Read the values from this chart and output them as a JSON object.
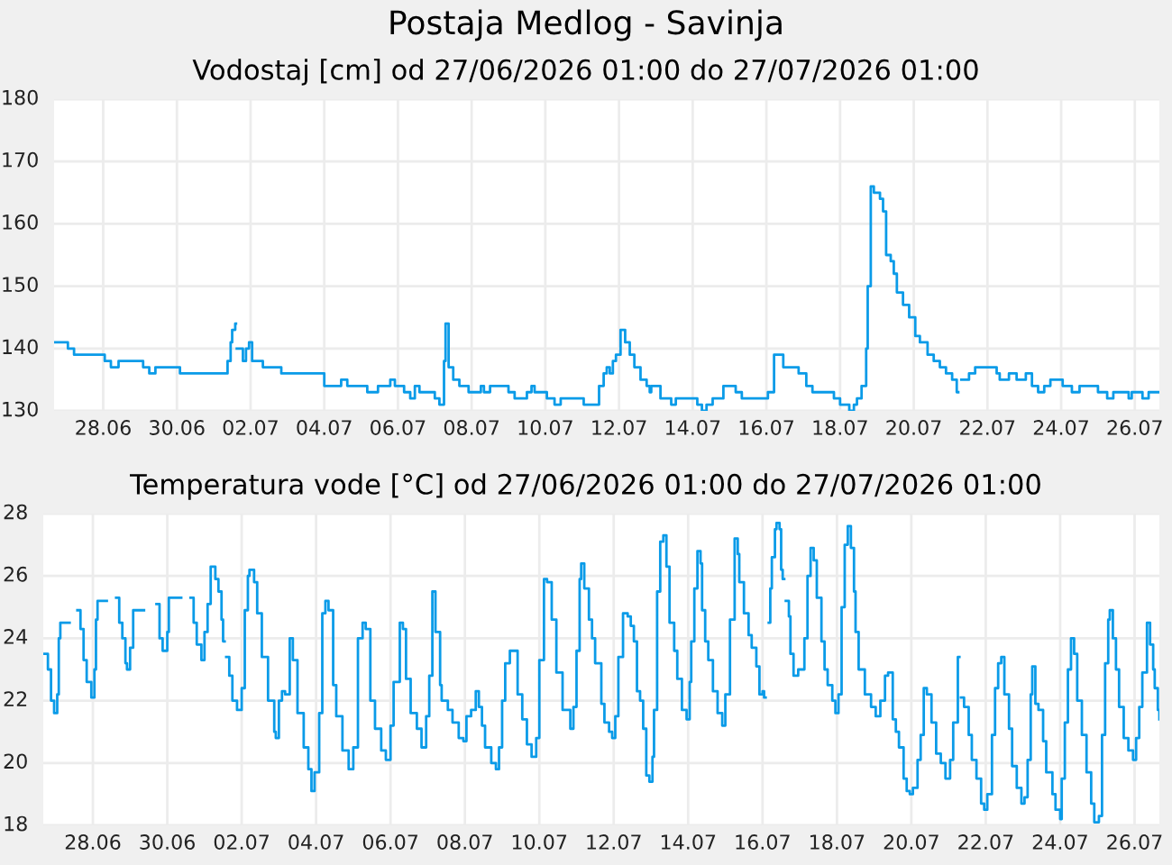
{
  "chart_data": [
    {
      "type": "step",
      "title": "Postaja Medlog - Savinja",
      "subtitle": "Vodostaj [cm] od 27/06/2026 01:00 do 27/07/2026 01:00",
      "series": [
        {
          "color": "#0a9be8",
          "x": [
            "2026-06-27T01:00",
            "2026-06-27T10:00",
            "2026-06-27T14:00",
            "2026-06-28T10:00",
            "2026-06-28T14:00",
            "2026-06-28T19:00",
            "2026-06-29T11:00",
            "2026-06-29T15:00",
            "2026-06-29T19:00",
            "2026-06-30T11:00",
            "2026-07-01T18:00",
            "2026-07-01T20:00",
            "2026-07-01T21:00",
            "2026-07-01T23:00",
            "2026-07-01T23:30",
            "2026-07-02T00:00",
            "2026-07-02T04:00",
            "2026-07-02T06:00",
            "2026-07-02T08:00",
            "2026-07-02T10:00",
            "2026-07-02T17:00",
            "2026-07-03T05:00",
            "2026-07-04T09:00",
            "2026-07-04T20:00",
            "2026-07-05T00:00",
            "2026-07-05T13:00",
            "2026-07-05T20:00",
            "2026-07-06T04:00",
            "2026-07-06T07:00",
            "2026-07-06T13:00",
            "2026-07-06T17:00",
            "2026-07-06T20:00",
            "2026-07-06T23:00",
            "2026-07-07T09:00",
            "2026-07-07T12:00",
            "2026-07-07T15:00",
            "2026-07-07T16:00",
            "2026-07-07T18:00",
            "2026-07-07T21:00",
            "2026-07-08T01:00",
            "2026-07-08T07:00",
            "2026-07-08T15:00",
            "2026-07-08T17:00",
            "2026-07-08T21:00",
            "2026-07-09T09:00",
            "2026-07-09T13:00",
            "2026-07-09T21:00",
            "2026-07-10T00:00",
            "2026-07-10T02:00",
            "2026-07-10T10:00",
            "2026-07-10T15:00",
            "2026-07-10T19:00",
            "2026-07-11T10:00",
            "2026-07-11T20:00",
            "2026-07-11T23:00",
            "2026-07-12T01:00",
            "2026-07-12T03:00",
            "2026-07-12T05:00",
            "2026-07-12T07:00",
            "2026-07-12T10:00",
            "2026-07-12T13:00",
            "2026-07-12T16:00",
            "2026-07-12T19:00",
            "2026-07-12T23:00",
            "2026-07-13T03:00",
            "2026-07-13T05:00",
            "2026-07-13T06:00",
            "2026-07-13T12:00",
            "2026-07-13T19:00",
            "2026-07-13T22:00",
            "2026-07-14T12:00",
            "2026-07-14T15:00",
            "2026-07-14T18:00",
            "2026-07-14T22:00",
            "2026-07-15T05:00",
            "2026-07-15T13:00",
            "2026-07-15T17:00",
            "2026-07-16T10:00",
            "2026-07-16T14:00",
            "2026-07-16T20:00",
            "2026-07-17T06:00",
            "2026-07-17T11:00",
            "2026-07-17T15:00",
            "2026-07-18T05:00",
            "2026-07-18T09:00",
            "2026-07-18T15:00",
            "2026-07-18T18:00",
            "2026-07-18T20:00",
            "2026-07-18T23:00",
            "2026-07-19T02:00",
            "2026-07-19T03:00",
            "2026-07-19T05:00",
            "2026-07-19T07:00",
            "2026-07-19T11:00",
            "2026-07-19T13:00",
            "2026-07-19T15:00",
            "2026-07-19T18:00",
            "2026-07-19T20:00",
            "2026-07-19T22:00",
            "2026-07-20T02:00",
            "2026-07-20T06:00",
            "2026-07-20T10:00",
            "2026-07-20T13:00",
            "2026-07-20T18:00",
            "2026-07-20T22:00",
            "2026-07-21T02:00",
            "2026-07-21T06:00",
            "2026-07-21T10:00",
            "2026-07-21T13:00",
            "2026-07-21T14:00",
            "2026-07-21T16:00",
            "2026-07-21T21:00",
            "2026-07-22T01:00",
            "2026-07-22T15:00",
            "2026-07-22T17:00",
            "2026-07-22T23:00",
            "2026-07-23T04:00",
            "2026-07-23T10:00",
            "2026-07-23T14:00",
            "2026-07-23T18:00",
            "2026-07-23T22:00",
            "2026-07-24T02:00",
            "2026-07-24T10:00",
            "2026-07-24T16:00",
            "2026-07-24T21:00",
            "2026-07-25T09:00",
            "2026-07-25T15:00",
            "2026-07-25T19:00",
            "2026-07-26T05:00",
            "2026-07-26T07:00",
            "2026-07-26T14:00",
            "2026-07-26T18:00",
            "2026-07-27T01:00"
          ],
          "values": [
            141,
            140,
            139,
            138,
            137,
            138,
            137,
            136,
            137,
            136,
            138,
            141,
            143,
            144,
            null,
            140,
            138,
            140,
            141,
            138,
            137,
            136,
            134,
            135,
            134,
            133,
            134,
            135,
            134,
            133,
            132,
            134,
            133,
            132,
            131,
            138,
            144,
            137,
            135,
            134,
            133,
            134,
            133,
            134,
            133,
            132,
            133,
            134,
            133,
            132,
            131,
            132,
            131,
            134,
            136,
            137,
            136,
            138,
            139,
            143,
            141,
            139,
            137,
            135,
            134,
            133,
            134,
            132,
            131,
            132,
            131,
            130,
            131,
            132,
            134,
            133,
            132,
            133,
            139,
            137,
            136,
            134,
            133,
            132,
            131,
            130,
            131,
            132,
            134,
            140,
            150,
            166,
            165,
            164,
            162,
            155,
            154,
            152,
            149,
            147,
            145,
            142,
            141,
            139,
            138,
            137,
            136,
            135,
            133,
            null,
            135,
            136,
            137,
            136,
            135,
            136,
            135,
            136,
            134,
            133,
            134,
            135,
            134,
            133,
            134,
            133,
            132,
            133,
            132,
            133,
            132,
            133,
            133
          ]
        }
      ],
      "xlim": [
        "2026-06-27T01:00",
        "2026-07-27T01:00"
      ],
      "ylim": [
        130,
        180
      ],
      "yticks": [
        130,
        140,
        150,
        160,
        170,
        180
      ],
      "xticks": [
        {
          "value": "2026-06-28T09:00",
          "label": "28.06"
        },
        {
          "value": "2026-06-30T09:00",
          "label": "30.06"
        },
        {
          "value": "2026-07-02T09:00",
          "label": "02.07"
        },
        {
          "value": "2026-07-04T09:00",
          "label": "04.07"
        },
        {
          "value": "2026-07-06T09:00",
          "label": "06.07"
        },
        {
          "value": "2026-07-08T09:00",
          "label": "08.07"
        },
        {
          "value": "2026-07-10T09:00",
          "label": "10.07"
        },
        {
          "value": "2026-07-12T09:00",
          "label": "12.07"
        },
        {
          "value": "2026-07-14T09:00",
          "label": "14.07"
        },
        {
          "value": "2026-07-16T09:00",
          "label": "16.07"
        },
        {
          "value": "2026-07-18T09:00",
          "label": "18.07"
        },
        {
          "value": "2026-07-20T09:00",
          "label": "20.07"
        },
        {
          "value": "2026-07-22T09:00",
          "label": "22.07"
        },
        {
          "value": "2026-07-24T09:00",
          "label": "24.07"
        },
        {
          "value": "2026-07-26T09:00",
          "label": "26.07"
        }
      ],
      "grid": true
    },
    {
      "type": "step",
      "title": "Temperatura vode [°C] od 27/06/2026 01:00 do 27/07/2026 01:00",
      "series": [
        {
          "color": "#0a9be8",
          "x": [
            "2026-06-27T01:00",
            "2026-06-27T04:00",
            "2026-06-27T06:00",
            "2026-06-27T08:00",
            "2026-06-27T10:00",
            "2026-06-27T11:00",
            "2026-06-27T12:00",
            "2026-06-27T18:00",
            "2026-06-27T23:00",
            "2026-06-28T01:00",
            "2026-06-28T03:00",
            "2026-06-28T05:00",
            "2026-06-28T08:00",
            "2026-06-28T10:00",
            "2026-06-28T11:00",
            "2026-06-28T12:00",
            "2026-06-28T18:00",
            "2026-06-29T00:00",
            "2026-06-29T02:00",
            "2026-06-29T04:00",
            "2026-06-29T06:00",
            "2026-06-29T07:00",
            "2026-06-29T09:00",
            "2026-06-29T11:00",
            "2026-06-29T18:00",
            "2026-06-30T02:00",
            "2026-06-30T04:00",
            "2026-06-30T06:00",
            "2026-06-30T08:00",
            "2026-06-30T09:00",
            "2026-06-30T10:00",
            "2026-06-30T18:00",
            "2026-07-01T00:00",
            "2026-07-01T02:00",
            "2026-07-01T04:00",
            "2026-07-01T07:00",
            "2026-07-01T09:00",
            "2026-07-01T11:00",
            "2026-07-01T13:00",
            "2026-07-01T16:00",
            "2026-07-01T18:00",
            "2026-07-01T20:00",
            "2026-07-01T21:00",
            "2026-07-01T22:00",
            "2026-07-01T23:00",
            "2026-07-02T01:00",
            "2026-07-02T03:00",
            "2026-07-02T06:00",
            "2026-07-02T09:00",
            "2026-07-02T11:00",
            "2026-07-02T13:00",
            "2026-07-02T14:00",
            "2026-07-02T17:00",
            "2026-07-02T19:00",
            "2026-07-02T22:00",
            "2026-07-03T02:00",
            "2026-07-03T06:00",
            "2026-07-03T07:00",
            "2026-07-03T09:00",
            "2026-07-03T11:00",
            "2026-07-03T13:00",
            "2026-07-03T16:00",
            "2026-07-03T18:00",
            "2026-07-03T21:00",
            "2026-07-04T01:00",
            "2026-07-04T04:00",
            "2026-07-04T06:00",
            "2026-07-04T08:00",
            "2026-07-04T11:00",
            "2026-07-04T13:00",
            "2026-07-04T15:00",
            "2026-07-04T17:00",
            "2026-07-04T20:00",
            "2026-07-04T22:00",
            "2026-07-05T02:00",
            "2026-07-05T06:00",
            "2026-07-05T09:00",
            "2026-07-05T12:00",
            "2026-07-05T15:00",
            "2026-07-05T17:00",
            "2026-07-05T20:00",
            "2026-07-05T23:00",
            "2026-07-06T03:00",
            "2026-07-06T06:00",
            "2026-07-06T09:00",
            "2026-07-06T11:00",
            "2026-07-06T15:00",
            "2026-07-06T17:00",
            "2026-07-06T19:00",
            "2026-07-06T22:00",
            "2026-07-07T02:00",
            "2026-07-07T05:00",
            "2026-07-07T08:00",
            "2026-07-07T10:00",
            "2026-07-07T12:00",
            "2026-07-07T14:00",
            "2026-07-07T17:00",
            "2026-07-07T18:00",
            "2026-07-07T22:00",
            "2026-07-08T01:00",
            "2026-07-08T05:00",
            "2026-07-08T08:00",
            "2026-07-08T10:00",
            "2026-07-08T13:00",
            "2026-07-08T16:00",
            "2026-07-08T18:00",
            "2026-07-08T20:00",
            "2026-07-08T22:00",
            "2026-07-09T02:00",
            "2026-07-09T05:00",
            "2026-07-09T07:00",
            "2026-07-09T09:00",
            "2026-07-09T11:00",
            "2026-07-09T14:00",
            "2026-07-09T16:00",
            "2026-07-09T19:00",
            "2026-07-09T22:00",
            "2026-07-10T01:00",
            "2026-07-10T04:00",
            "2026-07-10T07:00",
            "2026-07-10T09:00",
            "2026-07-10T12:00",
            "2026-07-10T14:00",
            "2026-07-10T17:00",
            "2026-07-10T20:00",
            "2026-07-11T00:00",
            "2026-07-11T05:00",
            "2026-07-11T07:00",
            "2026-07-11T09:00",
            "2026-07-11T11:00",
            "2026-07-11T12:00",
            "2026-07-11T14:00",
            "2026-07-11T17:00",
            "2026-07-11T19:00",
            "2026-07-11T21:00",
            "2026-07-12T01:00",
            "2026-07-12T03:00",
            "2026-07-12T06:00",
            "2026-07-12T08:00",
            "2026-07-12T10:00",
            "2026-07-12T12:00",
            "2026-07-12T15:00",
            "2026-07-12T18:00",
            "2026-07-12T20:00",
            "2026-07-12T22:00",
            "2026-07-13T00:00",
            "2026-07-13T02:00",
            "2026-07-13T04:00",
            "2026-07-13T06:00",
            "2026-07-13T08:00",
            "2026-07-13T10:00",
            "2026-07-13T11:00",
            "2026-07-13T13:00",
            "2026-07-13T15:00",
            "2026-07-13T17:00",
            "2026-07-13T19:00",
            "2026-07-13T21:00",
            "2026-07-14T00:00",
            "2026-07-14T02:00",
            "2026-07-14T05:00",
            "2026-07-14T08:00",
            "2026-07-14T10:00",
            "2026-07-14T11:00",
            "2026-07-14T13:00",
            "2026-07-14T15:00",
            "2026-07-14T17:00",
            "2026-07-14T18:00",
            "2026-07-14T20:00",
            "2026-07-14T22:00",
            "2026-07-15T01:00",
            "2026-07-15T04:00",
            "2026-07-15T07:00",
            "2026-07-15T09:00",
            "2026-07-15T12:00",
            "2026-07-15T15:00",
            "2026-07-15T17:00",
            "2026-07-15T18:00",
            "2026-07-15T21:00",
            "2026-07-16T00:00",
            "2026-07-16T02:00",
            "2026-07-16T05:00",
            "2026-07-16T07:00",
            "2026-07-16T09:00",
            "2026-07-16T10:00",
            "2026-07-16T11:00",
            "2026-07-16T13:00",
            "2026-07-16T14:00",
            "2026-07-16T15:00",
            "2026-07-16T17:00",
            "2026-07-16T18:00",
            "2026-07-16T20:00",
            "2026-07-16T21:00",
            "2026-07-16T22:00",
            "2026-07-16T23:00",
            "2026-07-17T00:00",
            "2026-07-17T02:00",
            "2026-07-17T03:00",
            "2026-07-17T05:00",
            "2026-07-17T08:00",
            "2026-07-17T12:00",
            "2026-07-17T14:00",
            "2026-07-17T16:00",
            "2026-07-17T18:00",
            "2026-07-17T20:00",
            "2026-07-17T23:00",
            "2026-07-18T01:00",
            "2026-07-18T03:00",
            "2026-07-18T06:00",
            "2026-07-18T08:00",
            "2026-07-18T10:00",
            "2026-07-18T12:00",
            "2026-07-18T14:00",
            "2026-07-18T16:00",
            "2026-07-18T18:00",
            "2026-07-18T20:00",
            "2026-07-18T21:00",
            "2026-07-18T23:00",
            "2026-07-19T03:00",
            "2026-07-19T07:00",
            "2026-07-19T10:00",
            "2026-07-19T13:00",
            "2026-07-19T16:00",
            "2026-07-19T18:00",
            "2026-07-19T21:00",
            "2026-07-19T23:00",
            "2026-07-20T01:00",
            "2026-07-20T04:00",
            "2026-07-20T06:00",
            "2026-07-20T08:00",
            "2026-07-20T10:00",
            "2026-07-20T13:00",
            "2026-07-20T15:00",
            "2026-07-20T17:00",
            "2026-07-20T19:00",
            "2026-07-20T22:00",
            "2026-07-21T01:00",
            "2026-07-21T04:00",
            "2026-07-21T07:00",
            "2026-07-21T10:00",
            "2026-07-21T12:00",
            "2026-07-21T15:00",
            "2026-07-21T16:00",
            "2026-07-21T17:00",
            "2026-07-21T19:00",
            "2026-07-21T22:00",
            "2026-07-22T00:00",
            "2026-07-22T03:00",
            "2026-07-22T06:00",
            "2026-07-22T08:00",
            "2026-07-22T10:00",
            "2026-07-22T13:00",
            "2026-07-22T15:00",
            "2026-07-22T17:00",
            "2026-07-22T19:00",
            "2026-07-22T21:00",
            "2026-07-23T00:00",
            "2026-07-23T02:00",
            "2026-07-23T05:00",
            "2026-07-23T08:00",
            "2026-07-23T10:00",
            "2026-07-23T12:00",
            "2026-07-23T14:00",
            "2026-07-23T15:00",
            "2026-07-23T17:00",
            "2026-07-23T19:00",
            "2026-07-23T22:00",
            "2026-07-24T00:00",
            "2026-07-24T04:00",
            "2026-07-24T06:00",
            "2026-07-24T09:00",
            "2026-07-24T10:00",
            "2026-07-24T12:00",
            "2026-07-24T14:00",
            "2026-07-24T16:00",
            "2026-07-24T18:00",
            "2026-07-24T20:00",
            "2026-07-24T23:00",
            "2026-07-25T02:00",
            "2026-07-25T05:00",
            "2026-07-25T07:00",
            "2026-07-25T10:00",
            "2026-07-25T12:00",
            "2026-07-25T14:00",
            "2026-07-25T16:00",
            "2026-07-25T17:00",
            "2026-07-25T19:00",
            "2026-07-25T21:00",
            "2026-07-25T23:00",
            "2026-07-26T02:00",
            "2026-07-26T05:00",
            "2026-07-26T08:00",
            "2026-07-26T10:00",
            "2026-07-26T12:00",
            "2026-07-26T14:00",
            "2026-07-26T17:00",
            "2026-07-26T19:00",
            "2026-07-26T21:00",
            "2026-07-26T22:00",
            "2026-07-27T00:00",
            "2026-07-27T01:00"
          ],
          "values": [
            23.5,
            23.0,
            22.0,
            21.6,
            22.2,
            24.0,
            24.5,
            null,
            24.9,
            24.3,
            23.3,
            22.6,
            22.1,
            23.0,
            24.6,
            25.2,
            null,
            25.3,
            24.5,
            24.0,
            23.2,
            23.0,
            23.7,
            24.9,
            null,
            25.1,
            24.0,
            23.6,
            23.6,
            24.2,
            25.3,
            null,
            25.3,
            24.5,
            23.8,
            23.3,
            24.2,
            25.1,
            26.3,
            25.9,
            25.5,
            24.6,
            23.9,
            null,
            23.4,
            22.8,
            22.0,
            21.7,
            22.4,
            24.9,
            26.0,
            26.2,
            25.8,
            24.8,
            23.4,
            22.0,
            21.0,
            20.8,
            22.0,
            22.3,
            22.2,
            24.0,
            23.3,
            21.6,
            20.5,
            19.8,
            19.1,
            19.7,
            21.6,
            24.8,
            25.2,
            24.9,
            22.5,
            21.5,
            20.4,
            19.8,
            20.5,
            24.0,
            24.5,
            24.3,
            22.0,
            21.1,
            20.4,
            20.1,
            21.2,
            22.6,
            24.5,
            24.3,
            22.7,
            21.6,
            21.1,
            20.5,
            21.5,
            22.8,
            25.5,
            24.2,
            22.5,
            22.0,
            21.7,
            21.3,
            20.8,
            20.7,
            21.5,
            21.7,
            22.3,
            21.8,
            21.2,
            20.5,
            20.0,
            19.8,
            20.5,
            22.0,
            23.2,
            23.6,
            23.6,
            22.2,
            21.4,
            20.6,
            20.2,
            20.8,
            23.3,
            25.9,
            25.8,
            24.6,
            22.9,
            21.7,
            21.1,
            21.8,
            23.6,
            25.9,
            26.4,
            25.6,
            24.6,
            24.0,
            23.2,
            21.9,
            21.3,
            21.0,
            20.8,
            21.5,
            23.4,
            24.8,
            24.7,
            24.4,
            23.9,
            22.3,
            22.0,
            21.1,
            19.6,
            19.4,
            20.2,
            21.7,
            25.5,
            27.1,
            27.3,
            26.3,
            24.5,
            23.6,
            22.7,
            21.7,
            21.4,
            22.6,
            23.9,
            25.6,
            26.8,
            26.4,
            24.9,
            23.9,
            23.3,
            22.3,
            21.6,
            21.2,
            22.2,
            24.6,
            27.2,
            26.7,
            25.8,
            24.8,
            24.1,
            23.7,
            23.1,
            22.2,
            22.3,
            22.1,
            null,
            24.5,
            25.6,
            26.6,
            27.5,
            27.7,
            27.5,
            26.2,
            25.9,
            null,
            25.2,
            24.7,
            23.5,
            22.8,
            23.0,
            24.0,
            26.0,
            26.9,
            26.5,
            25.3,
            23.9,
            23.0,
            22.5,
            22.0,
            21.6,
            22.2,
            25.0,
            27.0,
            27.6,
            26.9,
            25.5,
            24.2,
            23.0,
            22.2,
            21.8,
            21.5,
            22.0,
            22.8,
            22.9,
            21.4,
            21.0,
            20.5,
            19.5,
            19.1,
            19.0,
            19.2,
            20.1,
            20.9,
            22.4,
            22.2,
            21.3,
            20.3,
            20.0,
            19.5,
            20.1,
            21.3,
            23.4,
            null,
            22.1,
            21.8,
            20.9,
            20.1,
            19.5,
            18.7,
            18.5,
            19.0,
            20.9,
            22.4,
            23.2,
            23.4,
            22.2,
            21.1,
            19.9,
            19.2,
            18.7,
            18.9,
            20.1,
            22.2,
            23.1,
            21.9,
            21.7,
            20.7,
            19.7,
            19.0,
            18.5,
            18.2,
            19.5,
            21.3,
            23.0,
            24.0,
            23.5,
            22.0,
            20.9,
            19.7,
            18.7,
            18.1,
            18.3,
            20.9,
            23.2,
            24.6,
            24.9,
            24.0,
            23.0,
            21.8,
            20.8,
            20.4,
            20.1,
            20.8,
            21.8,
            22.9,
            24.5,
            23.8,
            23.0,
            22.4,
            21.7,
            21.4
          ]
        }
      ],
      "xlim": [
        "2026-06-27T01:00",
        "2026-07-27T01:00"
      ],
      "ylim": [
        18,
        28
      ],
      "yticks": [
        18,
        20,
        22,
        24,
        26,
        28
      ],
      "xticks": [
        {
          "value": "2026-06-28T09:00",
          "label": "28.06"
        },
        {
          "value": "2026-06-30T09:00",
          "label": "30.06"
        },
        {
          "value": "2026-07-02T09:00",
          "label": "02.07"
        },
        {
          "value": "2026-07-04T09:00",
          "label": "04.07"
        },
        {
          "value": "2026-07-06T09:00",
          "label": "06.07"
        },
        {
          "value": "2026-07-08T09:00",
          "label": "08.07"
        },
        {
          "value": "2026-07-10T09:00",
          "label": "10.07"
        },
        {
          "value": "2026-07-12T09:00",
          "label": "12.07"
        },
        {
          "value": "2026-07-14T09:00",
          "label": "14.07"
        },
        {
          "value": "2026-07-16T09:00",
          "label": "16.07"
        },
        {
          "value": "2026-07-18T09:00",
          "label": "18.07"
        },
        {
          "value": "2026-07-20T09:00",
          "label": "20.07"
        },
        {
          "value": "2026-07-22T09:00",
          "label": "22.07"
        },
        {
          "value": "2026-07-24T09:00",
          "label": "24.07"
        },
        {
          "value": "2026-07-26T09:00",
          "label": "26.07"
        }
      ],
      "grid": true
    }
  ]
}
